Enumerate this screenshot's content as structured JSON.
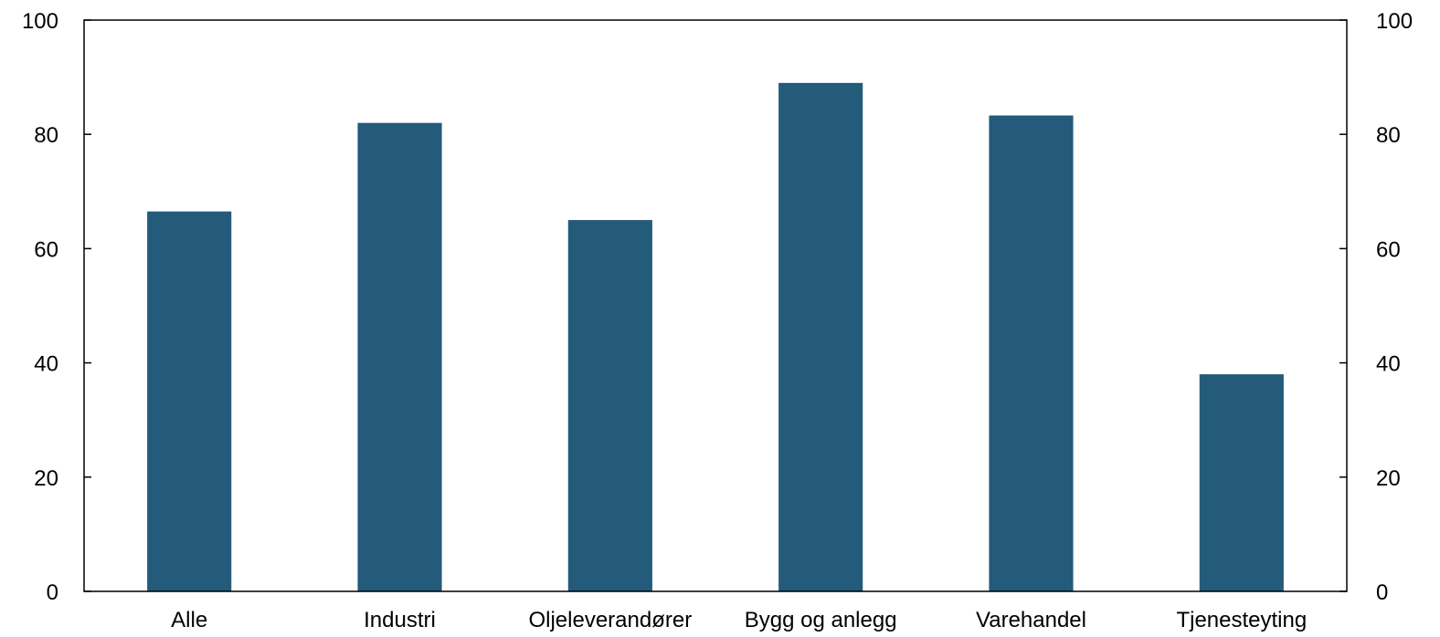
{
  "chart_data": {
    "type": "bar",
    "categories": [
      "Alle",
      "Industri",
      "Oljeleverandører",
      "Bygg og anlegg",
      "Varehandel",
      "Tjenesteyting"
    ],
    "values": [
      66.5,
      82,
      65,
      89,
      83.3,
      38
    ],
    "ylim": [
      0,
      100
    ],
    "yticks": [
      0,
      20,
      40,
      60,
      80,
      100
    ],
    "ytick_labels": [
      "0",
      "20",
      "40",
      "60",
      "80",
      "100"
    ],
    "secondary_ylim": [
      0,
      100
    ],
    "secondary_yticks": [
      0,
      20,
      40,
      60,
      80,
      100
    ],
    "secondary_ytick_labels": [
      "0",
      "20",
      "40",
      "60",
      "80",
      "100"
    ],
    "grid": false,
    "legend": "none",
    "bar_color": "#245a7a",
    "axis_color": "#000000"
  }
}
